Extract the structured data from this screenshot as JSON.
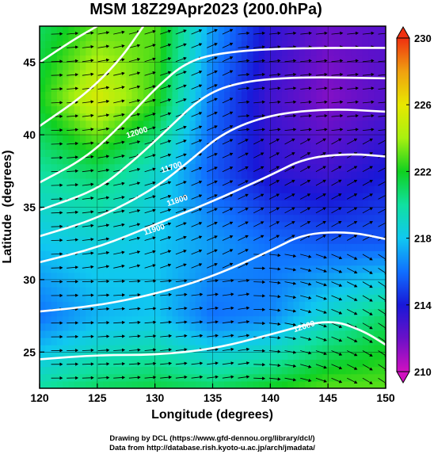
{
  "chart_data": {
    "type": "heatmap",
    "title": "MSM 18Z29Apr2023 (200.0hPa)",
    "xlabel": "Longitude (degrees)",
    "ylabel": "Latitude  (degrees)",
    "xlim": [
      120,
      150
    ],
    "ylim": [
      22.5,
      47.5
    ],
    "xticks": [
      "120",
      "125",
      "130",
      "135",
      "140",
      "145",
      "150"
    ],
    "yticks": [
      "25",
      "30",
      "35",
      "40",
      "45"
    ],
    "colorbar": {
      "range": [
        210,
        230
      ],
      "ticks": [
        "210",
        "214",
        "218",
        "222",
        "226",
        "230"
      ]
    },
    "contour_labels": [
      "12000",
      "11900",
      "11800",
      "11700",
      "12000"
    ],
    "contours": [
      {
        "points": [
          [
            120,
            24.5
          ],
          [
            125,
            24.8
          ],
          [
            130,
            24.8
          ],
          [
            135,
            25.2
          ],
          [
            140,
            26.2
          ],
          [
            145,
            27.3
          ],
          [
            148,
            26.5
          ],
          [
            150,
            25.5
          ]
        ]
      },
      {
        "points": [
          [
            120,
            27.8
          ],
          [
            125,
            28.2
          ],
          [
            130,
            29.0
          ],
          [
            135,
            30.2
          ],
          [
            140,
            32.0
          ],
          [
            143,
            33.2
          ],
          [
            147,
            33.3
          ],
          [
            150,
            32.8
          ]
        ]
      },
      {
        "points": [
          [
            120,
            31.2
          ],
          [
            125,
            32.2
          ],
          [
            130,
            33.8
          ],
          [
            135,
            35.4
          ],
          [
            140,
            37.2
          ],
          [
            143,
            38.4
          ],
          [
            147,
            38.7
          ],
          [
            150,
            38.5
          ]
        ]
      },
      {
        "points": [
          [
            120,
            33.0
          ],
          [
            125,
            34.2
          ],
          [
            130,
            36.3
          ],
          [
            133,
            38.2
          ],
          [
            136,
            40.2
          ],
          [
            140,
            41.4
          ],
          [
            145,
            41.8
          ],
          [
            150,
            41.6
          ]
        ]
      },
      {
        "points": [
          [
            120,
            34.8
          ],
          [
            125,
            36.2
          ],
          [
            128,
            38.1
          ],
          [
            131,
            40.3
          ],
          [
            134,
            42.6
          ],
          [
            137,
            43.6
          ],
          [
            142,
            44.0
          ],
          [
            150,
            43.9
          ]
        ]
      },
      {
        "points": [
          [
            120,
            36.7
          ],
          [
            124,
            38.4
          ],
          [
            127,
            40.6
          ],
          [
            130,
            43.2
          ],
          [
            133,
            45.2
          ],
          [
            137,
            45.8
          ],
          [
            143,
            46.0
          ],
          [
            150,
            46.0
          ]
        ]
      },
      {
        "points": [
          [
            120,
            40.6
          ],
          [
            124,
            42.8
          ],
          [
            127,
            45.2
          ],
          [
            129,
            47.5
          ]
        ]
      },
      {
        "points": [
          [
            120,
            45.0
          ],
          [
            123,
            46.6
          ],
          [
            125,
            47.5
          ]
        ]
      }
    ]
  },
  "credits": {
    "line1": "Drawing by DCL (https://www.gfd-dennou.org/library/dcl/)",
    "line2": "Data from http://database.rish.kyoto-u.ac.jp/arch/jmadata/"
  },
  "colors": {
    "scale": [
      "#d010c0",
      "#6a10c8",
      "#1818d8",
      "#1070ff",
      "#10c8f0",
      "#10e0a0",
      "#10d020",
      "#a8f010",
      "#e8e800",
      "#f0a010",
      "#f03010"
    ],
    "contour": "#ffffff",
    "vector": "#000000"
  },
  "field": {
    "temp_grid_lon": [
      120,
      125,
      130,
      135,
      140,
      145,
      150
    ],
    "temp_grid_lat": [
      47.5,
      42.5,
      37.5,
      32.5,
      27.5,
      22.5
    ],
    "temperature": [
      [
        221,
        223,
        223,
        217,
        213.5,
        212,
        212.5
      ],
      [
        222,
        225.5,
        222.5,
        216,
        213,
        211.5,
        212.5
      ],
      [
        220,
        221,
        219,
        215.5,
        213.5,
        213,
        214
      ],
      [
        218,
        218.5,
        218,
        217,
        216,
        215.5,
        215.5
      ],
      [
        216,
        217.5,
        218,
        216,
        216.5,
        219,
        221
      ],
      [
        220,
        221,
        221.5,
        221,
        222,
        223,
        223
      ]
    ]
  }
}
